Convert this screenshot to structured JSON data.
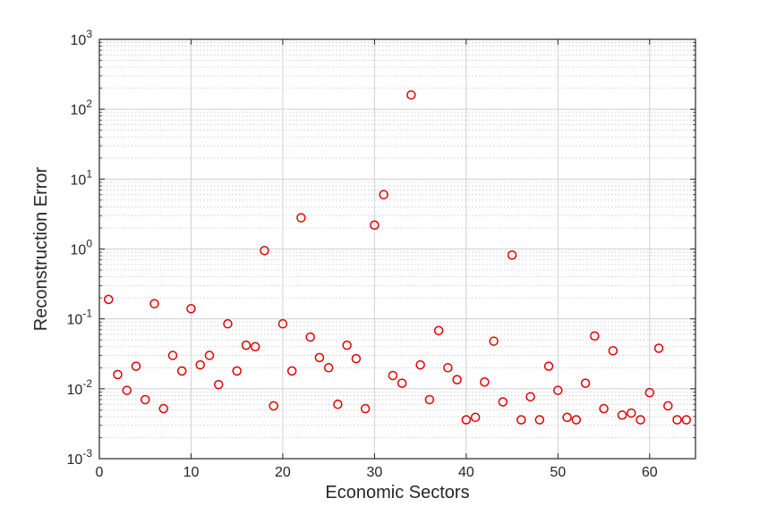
{
  "chart_data": {
    "type": "scatter",
    "xlabel": "Economic Sectors",
    "ylabel": "Reconstruction Error",
    "xlim": [
      0,
      65
    ],
    "ylim": [
      0.001,
      1000
    ],
    "yscale": "log",
    "x_ticks": [
      0,
      10,
      20,
      30,
      40,
      50,
      60
    ],
    "y_ticks": [
      {
        "value": 0.001,
        "base": "10",
        "exp": "-3"
      },
      {
        "value": 0.01,
        "base": "10",
        "exp": "-2"
      },
      {
        "value": 0.1,
        "base": "10",
        "exp": "-1"
      },
      {
        "value": 1,
        "base": "10",
        "exp": "0"
      },
      {
        "value": 10,
        "base": "10",
        "exp": "1"
      },
      {
        "value": 100,
        "base": "10",
        "exp": "2"
      },
      {
        "value": 1000,
        "base": "10",
        "exp": "3"
      }
    ],
    "grid": true,
    "marker_color": "#e00000",
    "marker": "open-circle",
    "points": [
      {
        "x": 1,
        "y": 0.19
      },
      {
        "x": 2,
        "y": 0.016
      },
      {
        "x": 3,
        "y": 0.0095
      },
      {
        "x": 4,
        "y": 0.021
      },
      {
        "x": 5,
        "y": 0.007
      },
      {
        "x": 6,
        "y": 0.165
      },
      {
        "x": 7,
        "y": 0.0052
      },
      {
        "x": 8,
        "y": 0.03
      },
      {
        "x": 9,
        "y": 0.018
      },
      {
        "x": 10,
        "y": 0.14
      },
      {
        "x": 11,
        "y": 0.022
      },
      {
        "x": 12,
        "y": 0.03
      },
      {
        "x": 13,
        "y": 0.0115
      },
      {
        "x": 14,
        "y": 0.085
      },
      {
        "x": 15,
        "y": 0.018
      },
      {
        "x": 16,
        "y": 0.042
      },
      {
        "x": 17,
        "y": 0.04
      },
      {
        "x": 18,
        "y": 0.95
      },
      {
        "x": 19,
        "y": 0.0057
      },
      {
        "x": 20,
        "y": 0.085
      },
      {
        "x": 21,
        "y": 0.018
      },
      {
        "x": 22,
        "y": 2.8
      },
      {
        "x": 23,
        "y": 0.055
      },
      {
        "x": 24,
        "y": 0.028
      },
      {
        "x": 25,
        "y": 0.02
      },
      {
        "x": 26,
        "y": 0.006
      },
      {
        "x": 27,
        "y": 0.042
      },
      {
        "x": 28,
        "y": 0.027
      },
      {
        "x": 29,
        "y": 0.0052
      },
      {
        "x": 30,
        "y": 2.2
      },
      {
        "x": 31,
        "y": 6.0
      },
      {
        "x": 32,
        "y": 0.0155
      },
      {
        "x": 33,
        "y": 0.012
      },
      {
        "x": 34,
        "y": 160
      },
      {
        "x": 35,
        "y": 0.022
      },
      {
        "x": 36,
        "y": 0.007
      },
      {
        "x": 37,
        "y": 0.068
      },
      {
        "x": 38,
        "y": 0.02
      },
      {
        "x": 39,
        "y": 0.0135
      },
      {
        "x": 40,
        "y": 0.0036
      },
      {
        "x": 41,
        "y": 0.0039
      },
      {
        "x": 42,
        "y": 0.0125
      },
      {
        "x": 43,
        "y": 0.048
      },
      {
        "x": 44,
        "y": 0.0065
      },
      {
        "x": 45,
        "y": 0.82
      },
      {
        "x": 46,
        "y": 0.0036
      },
      {
        "x": 47,
        "y": 0.0077
      },
      {
        "x": 48,
        "y": 0.0036
      },
      {
        "x": 49,
        "y": 0.021
      },
      {
        "x": 50,
        "y": 0.0095
      },
      {
        "x": 51,
        "y": 0.0039
      },
      {
        "x": 52,
        "y": 0.0036
      },
      {
        "x": 53,
        "y": 0.012
      },
      {
        "x": 54,
        "y": 0.057
      },
      {
        "x": 55,
        "y": 0.0052
      },
      {
        "x": 56,
        "y": 0.035
      },
      {
        "x": 57,
        "y": 0.0042
      },
      {
        "x": 58,
        "y": 0.0045
      },
      {
        "x": 59,
        "y": 0.0036
      },
      {
        "x": 60,
        "y": 0.0088
      },
      {
        "x": 61,
        "y": 0.038
      },
      {
        "x": 62,
        "y": 0.0057
      },
      {
        "x": 63,
        "y": 0.0036
      },
      {
        "x": 64,
        "y": 0.0036
      }
    ]
  }
}
